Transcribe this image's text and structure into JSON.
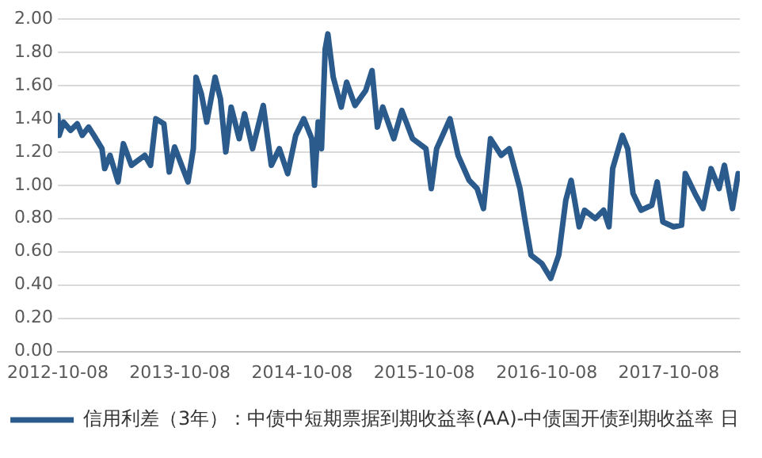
{
  "chart_data": {
    "type": "line",
    "x": [
      "2012-10-08",
      "2012-10-12",
      "2012-10-25",
      "2012-11-15",
      "2012-12-05",
      "2012-12-20",
      "2013-01-08",
      "2013-01-24",
      "2013-02-17",
      "2013-02-25",
      "2013-03-13",
      "2013-04-06",
      "2013-04-22",
      "2013-05-16",
      "2013-06-25",
      "2013-07-12",
      "2013-07-28",
      "2013-08-21",
      "2013-09-06",
      "2013-09-22",
      "2013-11-01",
      "2013-11-17",
      "2013-11-25",
      "2013-12-11",
      "2013-12-27",
      "2014-01-21",
      "2014-02-06",
      "2014-02-22",
      "2014-03-10",
      "2014-04-03",
      "2014-04-19",
      "2014-05-13",
      "2014-06-14",
      "2014-07-08",
      "2014-08-01",
      "2014-08-26",
      "2014-09-19",
      "2014-10-13",
      "2014-11-06",
      "2014-11-14",
      "2014-11-25",
      "2014-12-05",
      "2014-12-16",
      "2014-12-24",
      "2015-01-09",
      "2015-02-02",
      "2015-02-18",
      "2015-03-15",
      "2015-04-16",
      "2015-05-05",
      "2015-05-21",
      "2015-06-06",
      "2015-07-09",
      "2015-08-02",
      "2015-09-03",
      "2015-10-13",
      "2015-10-29",
      "2015-11-14",
      "2015-12-24",
      "2016-01-17",
      "2016-02-19",
      "2016-03-14",
      "2016-04-02",
      "2016-04-23",
      "2016-05-25",
      "2016-06-18",
      "2016-07-20",
      "2016-08-05",
      "2016-08-22",
      "2016-09-23",
      "2016-10-20",
      "2016-11-13",
      "2016-12-04",
      "2016-12-20",
      "2017-01-13",
      "2017-01-29",
      "2017-03-02",
      "2017-03-27",
      "2017-04-12",
      "2017-04-23",
      "2017-05-22",
      "2017-06-07",
      "2017-06-23",
      "2017-07-17",
      "2017-08-18",
      "2017-09-03",
      "2017-09-20",
      "2017-10-22",
      "2017-11-15",
      "2017-11-26",
      "2017-12-25",
      "2018-01-18",
      "2018-02-11",
      "2018-03-07",
      "2018-03-23",
      "2018-04-16",
      "2018-05-03"
    ],
    "series": [
      {
        "name": "信用利差（3年）：中债中短期票据到期收益率(AA)-中债国开债到期收益率 日",
        "color": "#2a5b8c",
        "values": [
          1.42,
          1.3,
          1.38,
          1.33,
          1.37,
          1.3,
          1.35,
          1.3,
          1.22,
          1.1,
          1.18,
          1.02,
          1.25,
          1.12,
          1.18,
          1.12,
          1.4,
          1.37,
          1.08,
          1.23,
          1.02,
          1.22,
          1.65,
          1.55,
          1.38,
          1.65,
          1.52,
          1.2,
          1.47,
          1.28,
          1.43,
          1.22,
          1.48,
          1.12,
          1.22,
          1.07,
          1.3,
          1.4,
          1.28,
          1.0,
          1.38,
          1.22,
          1.82,
          1.91,
          1.65,
          1.47,
          1.62,
          1.48,
          1.57,
          1.69,
          1.35,
          1.47,
          1.28,
          1.45,
          1.28,
          1.22,
          0.98,
          1.22,
          1.4,
          1.18,
          1.03,
          0.98,
          0.86,
          1.28,
          1.18,
          1.22,
          0.98,
          0.78,
          0.58,
          0.53,
          0.44,
          0.58,
          0.91,
          1.03,
          0.75,
          0.85,
          0.8,
          0.85,
          0.75,
          1.1,
          1.3,
          1.22,
          0.95,
          0.85,
          0.88,
          1.02,
          0.78,
          0.75,
          0.76,
          1.07,
          0.95,
          0.86,
          1.1,
          0.98,
          1.12,
          0.86,
          1.07
        ]
      }
    ],
    "xlim": [
      "2012-10-08",
      "2018-05-08"
    ],
    "xticks": [
      "2012-10-08",
      "2013-10-08",
      "2014-10-08",
      "2015-10-08",
      "2016-10-08",
      "2017-10-08"
    ],
    "ylim": [
      0,
      2
    ],
    "yticks": [
      {
        "value": 0,
        "label": "0.00"
      },
      {
        "value": 0.2,
        "label": "0.20"
      },
      {
        "value": 0.4,
        "label": "0.40"
      },
      {
        "value": 0.6,
        "label": "0.60"
      },
      {
        "value": 0.8,
        "label": "0.80"
      },
      {
        "value": 1,
        "label": "1.00"
      },
      {
        "value": 1.2,
        "label": "1.20"
      },
      {
        "value": 1.4,
        "label": "1.40"
      },
      {
        "value": 1.6,
        "label": "1.60"
      },
      {
        "value": 1.8,
        "label": "1.80"
      },
      {
        "value": 2,
        "label": "2.00"
      }
    ],
    "grid": "y",
    "legend": "bottom",
    "marker": "none",
    "line_style": "solid"
  }
}
